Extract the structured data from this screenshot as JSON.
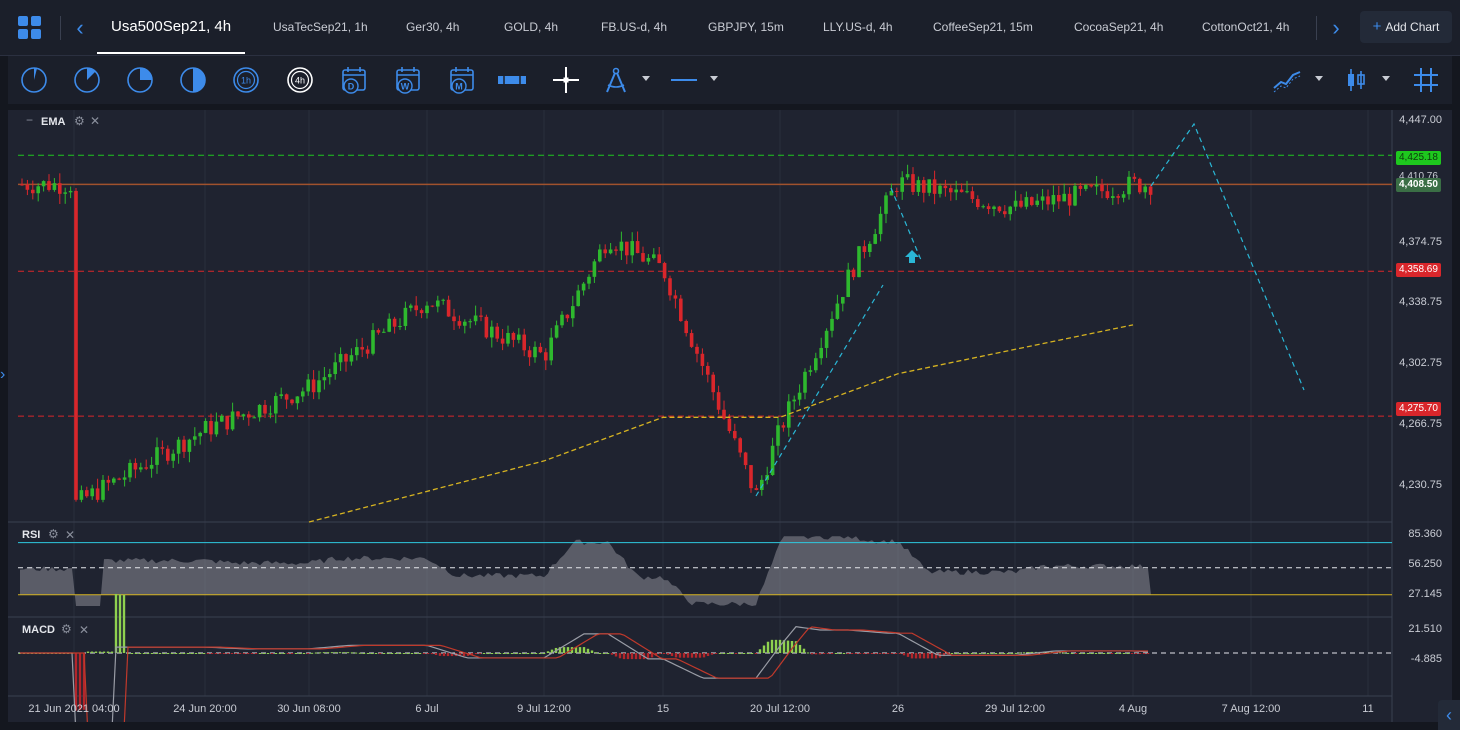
{
  "tabs": {
    "active": "Usa500Sep21, 4h",
    "items": [
      "UsaTecSep21, 1h",
      "Ger30, 4h",
      "GOLD, 4h",
      "FB.US-d, 4h",
      "GBPJPY, 15m",
      "LLY.US-d, 4h",
      "CoffeeSep21, 15m",
      "CocoaSep21, 4h",
      "CottonOct21, 4h"
    ],
    "add_chart": "Add Chart"
  },
  "toolbar": {
    "tools": [
      "clock-quarter-icon",
      "clock-half-icon",
      "clock-three-quarter-icon",
      "clock-full-icon",
      "timeframe-1h-icon",
      "timeframe-4h-icon",
      "calendar-day-icon",
      "calendar-week-icon",
      "calendar-month-icon",
      "range-icon",
      "crosshair-icon",
      "drawing-compass-icon",
      "line-style-icon",
      "chart-type-line-icon",
      "candlestick-icon",
      "grid-icon"
    ],
    "timeframe_1h": "1h",
    "timeframe_4h": "4h",
    "cal_d": "D",
    "cal_w": "W",
    "cal_m": "M"
  },
  "panes": {
    "main_indicator": "EMA",
    "rsi_label": "RSI",
    "macd_label": "MACD"
  },
  "price_axis": [
    "4,447.00",
    "4,374.75",
    "4,338.75",
    "4,302.75",
    "4,266.75",
    "4,230.75"
  ],
  "price_tags": {
    "green": "4,425.18",
    "current": "4,408.50",
    "red_upper": "4,358.69",
    "red_lower": "4,275.70",
    "partial": "4,410.76"
  },
  "rsi_axis": [
    "85.360",
    "56.250",
    "27.145"
  ],
  "macd_axis": [
    "21.510",
    "-4.885"
  ],
  "time_axis": [
    "21 Jun 2021 04:00",
    "24 Jun 20:00",
    "30 Jun 08:00",
    "6 Jul",
    "9 Jul 12:00",
    "15",
    "20 Jul 12:00",
    "26",
    "29 Jul 12:00",
    "4 Aug",
    "7 Aug 12:00",
    "11"
  ],
  "colors": {
    "bull": "#2eb82e",
    "bear": "#d9262b",
    "ema": "#d6b321",
    "green_level": "#1ec81e",
    "red_level": "#d9262b",
    "current_level": "#a0522d",
    "projection": "#2ab7d6",
    "rsi_fill": "#8a8d96",
    "rsi_over": "#2fc9df",
    "accent": "#3d8bea"
  },
  "chart_data": {
    "type": "candlestick",
    "symbol": "Usa500Sep21",
    "timeframe": "4h",
    "ylim": [
      4215,
      4450
    ],
    "levels": [
      4425.18,
      4408.5,
      4358.69,
      4275.7
    ],
    "approx_close_path": [
      {
        "x": "21 Jun 2021 04:00",
        "y": 4225
      },
      {
        "x": "24 Jun 20:00",
        "y": 4268
      },
      {
        "x": "30 Jun 08:00",
        "y": 4292
      },
      {
        "x": "6 Jul",
        "y": 4342
      },
      {
        "x": "9 Jul 12:00",
        "y": 4310
      },
      {
        "x": "12 Jul",
        "y": 4378
      },
      {
        "x": "15",
        "y": 4360
      },
      {
        "x": "19 Jul",
        "y": 4230
      },
      {
        "x": "20 Jul 12:00",
        "y": 4268
      },
      {
        "x": "23 Jul",
        "y": 4355
      },
      {
        "x": "26",
        "y": 4410
      },
      {
        "x": "29 Jul 12:00",
        "y": 4395
      },
      {
        "x": "4 Aug",
        "y": 4408.5
      }
    ],
    "ema_path": [
      {
        "x": "30 Jun 08:00",
        "y": 4215
      },
      {
        "x": "9 Jul 12:00",
        "y": 4250
      },
      {
        "x": "15",
        "y": 4275
      },
      {
        "x": "20 Jul 12:00",
        "y": 4275
      },
      {
        "x": "26",
        "y": 4300
      },
      {
        "x": "4 Aug",
        "y": 4328
      }
    ],
    "rsi_levels": [
      85.36,
      56.25,
      27.145
    ],
    "macd_levels": [
      21.51,
      -4.885
    ]
  }
}
